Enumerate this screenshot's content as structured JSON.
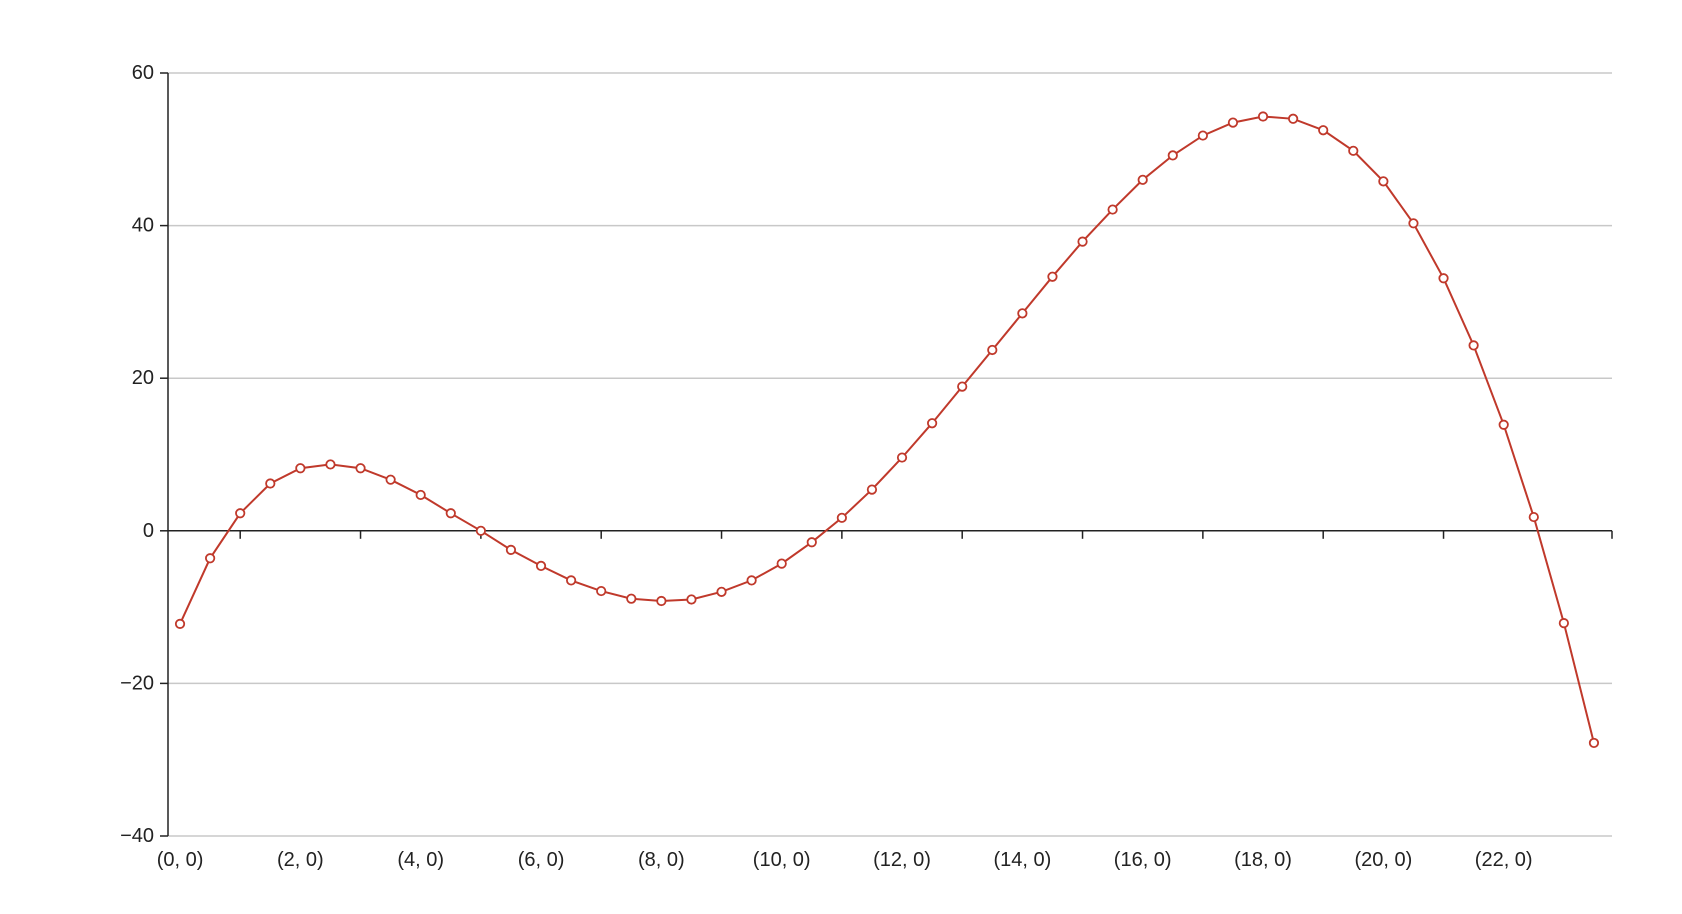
{
  "chart_data": {
    "type": "line",
    "title": "",
    "xlabel": "",
    "ylabel": "",
    "xlim": [
      -0.2,
      23.8
    ],
    "ylim": [
      -40,
      60
    ],
    "y_ticks": [
      -40,
      -20,
      0,
      20,
      40,
      60
    ],
    "y_tick_labels": [
      "−40",
      "−20",
      "0",
      "20",
      "40",
      "60"
    ],
    "x_ticks": [
      0,
      2,
      4,
      6,
      8,
      10,
      12,
      14,
      16,
      18,
      20,
      22
    ],
    "x_tick_labels": [
      "(0, 0)",
      "(2, 0)",
      "(4, 0)",
      "(6, 0)",
      "(8, 0)",
      "(10, 0)",
      "(12, 0)",
      "(14, 0)",
      "(16, 0)",
      "(18, 0)",
      "(20, 0)",
      "(22, 0)"
    ],
    "grid": "horizontal",
    "zero_line": true,
    "colors": {
      "series": "#c0392b",
      "grid": "#c8c8c8",
      "axis": "#222222"
    },
    "series": [
      {
        "x": [
          0,
          0.5,
          1,
          1.5,
          2,
          2.5,
          3,
          3.5,
          4,
          4.5,
          5,
          5.5,
          6,
          6.5,
          7,
          7.5,
          8,
          8.5,
          9,
          9.5,
          10,
          10.5,
          11,
          11.5,
          12,
          12.5,
          13,
          13.5,
          14,
          14.5,
          15,
          15.5,
          16,
          16.5,
          17,
          17.5,
          18,
          18.5,
          19,
          19.5,
          20,
          20.5,
          21,
          21.5,
          22,
          22.5,
          23,
          23.5
        ],
        "values": [
          -12.2,
          -3.6,
          2.3,
          6.2,
          8.2,
          8.7,
          8.2,
          6.7,
          4.7,
          2.3,
          0.0,
          -2.5,
          -4.6,
          -6.5,
          -7.9,
          -8.9,
          -9.2,
          -9.0,
          -8.0,
          -6.5,
          -4.3,
          -1.5,
          1.7,
          5.4,
          9.6,
          14.1,
          18.9,
          23.7,
          28.5,
          33.3,
          37.9,
          42.1,
          46.0,
          49.2,
          51.8,
          53.5,
          54.3,
          54.0,
          52.5,
          49.8,
          45.8,
          40.3,
          33.1,
          24.3,
          13.9,
          1.8,
          -12.1,
          -27.8
        ]
      }
    ]
  }
}
